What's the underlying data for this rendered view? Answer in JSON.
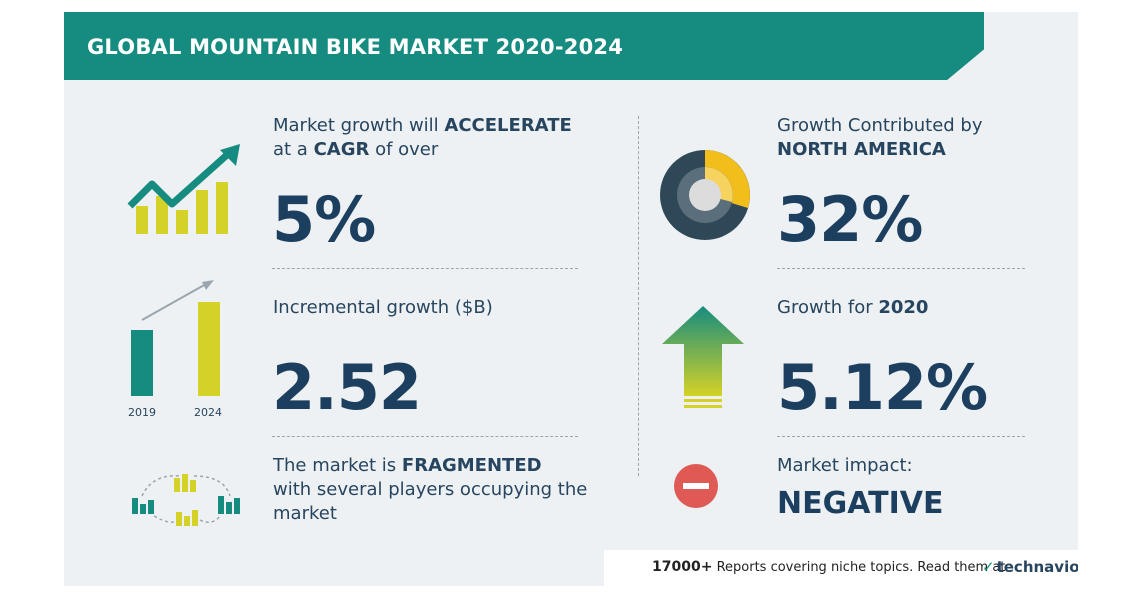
{
  "banner": {
    "title": "GLOBAL MOUNTAIN BIKE MARKET 2020-2024"
  },
  "cagr": {
    "line1_prefix": "Market growth will ",
    "line1_bold": "ACCELERATE",
    "line2_prefix": "at a ",
    "line2_bold": "CAGR",
    "line2_suffix": " of over",
    "value": "5%"
  },
  "incremental": {
    "label": "Incremental growth ($B)",
    "value": "2.52",
    "year_start": "2019",
    "year_end": "2024"
  },
  "fragmented": {
    "line1_prefix": "The market is ",
    "line1_bold": "FRAGMENTED",
    "line2": "with several players occupying the",
    "line3": "market"
  },
  "region": {
    "line1": "Growth Contributed by",
    "line2_bold": "NORTH AMERICA",
    "value": "32%",
    "share": 0.32
  },
  "growth_year": {
    "prefix": "Growth for ",
    "year": "2020",
    "value": "5.12%"
  },
  "impact": {
    "label": "Market impact:",
    "value": "NEGATIVE"
  },
  "footer": {
    "count": "17000+",
    "text": " Reports covering niche topics. Read them at",
    "logo": "technavio"
  },
  "colors": {
    "teal": "#168c80",
    "yellow": "#d4d226",
    "navy": "#1d3f5f",
    "red": "#e05a55",
    "gold": "#f2be1c"
  }
}
